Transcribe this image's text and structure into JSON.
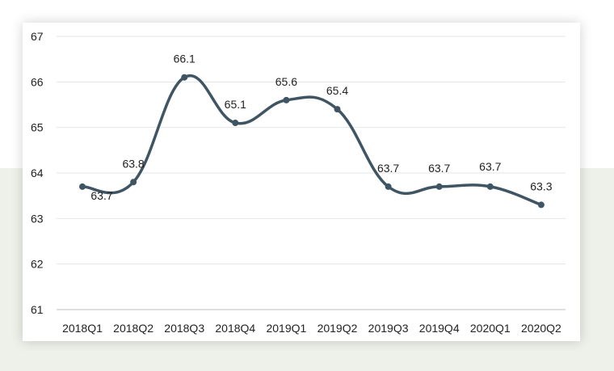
{
  "chart_data": {
    "type": "line",
    "title": "",
    "xlabel": "",
    "ylabel": "",
    "categories": [
      "2018Q1",
      "2018Q2",
      "2018Q3",
      "2018Q4",
      "2019Q1",
      "2019Q2",
      "2019Q3",
      "2019Q4",
      "2020Q1",
      "2020Q2"
    ],
    "series": [
      {
        "values": [
          63.7,
          63.8,
          66.1,
          65.1,
          65.6,
          65.4,
          63.7,
          63.7,
          63.7,
          63.3
        ]
      }
    ],
    "data_labels": [
      "63.7",
      "63.8",
      "66.1",
      "65.1",
      "65.6",
      "65.4",
      "63.7",
      "63.7",
      "63.7",
      "63.3"
    ],
    "ylim": [
      61,
      67
    ],
    "yticks": [
      61,
      62,
      63,
      64,
      65,
      66,
      67
    ],
    "grid": true,
    "legend": "none",
    "line_color": "#3f5563",
    "smooth": true
  }
}
